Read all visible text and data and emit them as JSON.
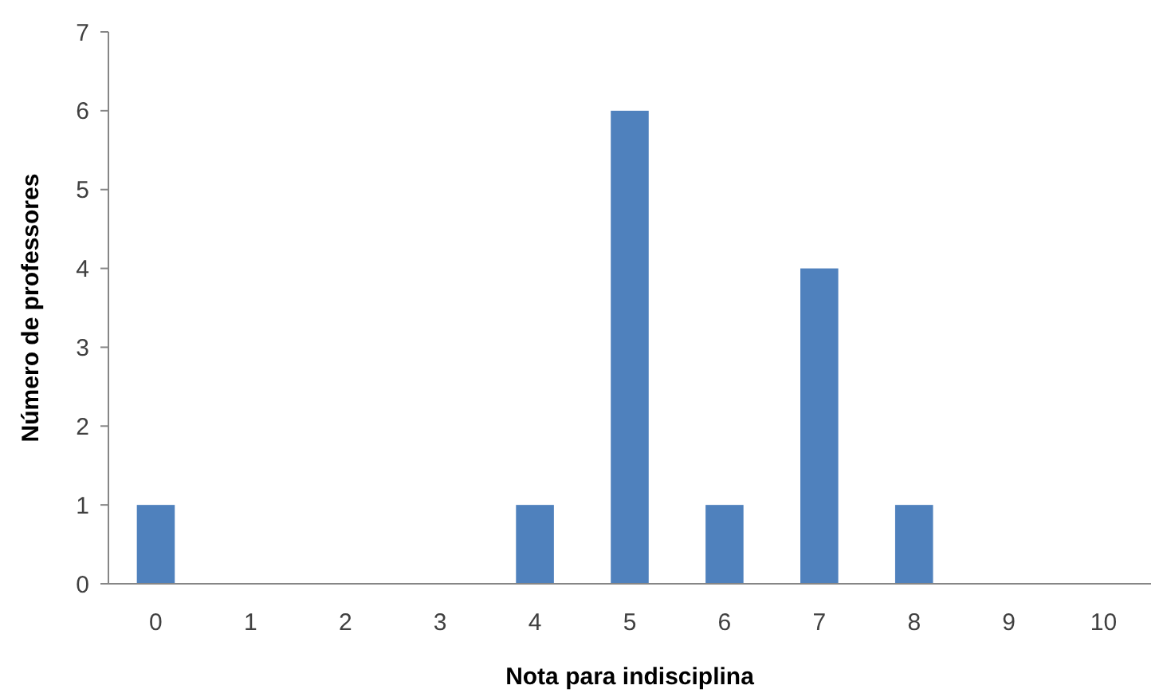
{
  "chart_data": {
    "type": "bar",
    "xlabel": "Nota para indisciplina",
    "ylabel": "Número de professores",
    "categories": [
      "0",
      "1",
      "2",
      "3",
      "4",
      "5",
      "6",
      "7",
      "8",
      "9",
      "10"
    ],
    "values": [
      1,
      0,
      0,
      0,
      1,
      6,
      1,
      4,
      1,
      0,
      0
    ],
    "color": "#4f81bd",
    "ylim": [
      0,
      7
    ],
    "yticks": [
      0,
      1,
      2,
      3,
      4,
      5,
      6,
      7
    ],
    "grid": false
  }
}
